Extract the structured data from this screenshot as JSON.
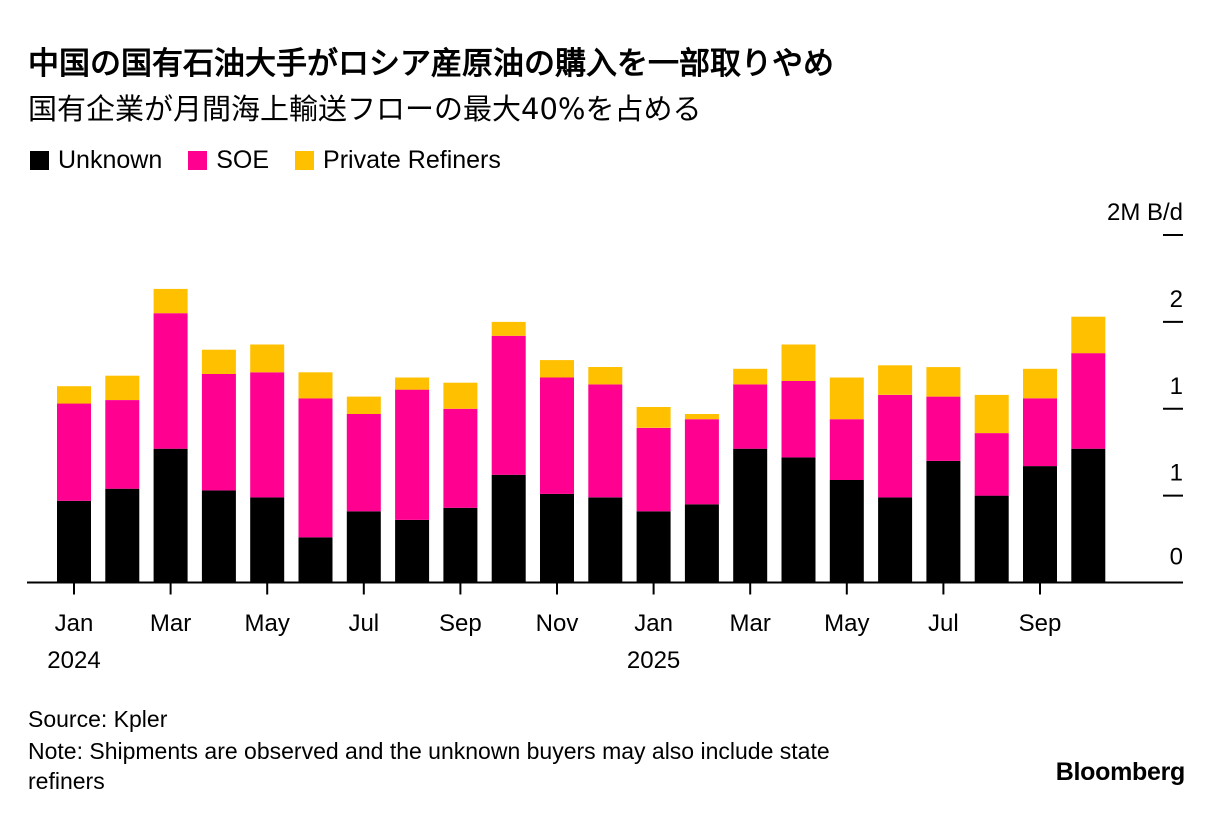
{
  "header": {
    "title": "中国の国有石油大手がロシア産原油の購入を一部取りやめ",
    "subtitle": "国有企業が月間海上輸送フローの最大40%を占める"
  },
  "legend": [
    {
      "label": "Unknown",
      "color": "#000000"
    },
    {
      "label": "SOE",
      "color": "#FF0090"
    },
    {
      "label": "Private Refiners",
      "color": "#FFC000"
    }
  ],
  "footer": {
    "source": "Source: Kpler",
    "note": "Note: Shipments are observed and the unknown buyers may also include state refiners",
    "brand": "Bloomberg"
  },
  "chart_data": {
    "type": "bar",
    "stacked": true,
    "title": "中国の国有石油大手がロシア産原油の購入を一部取りやめ",
    "subtitle": "国有企業が月間海上輸送フローの最大40%を占める",
    "xlabel": "",
    "ylabel": "M B/d",
    "ylim": [
      0,
      2
    ],
    "grid": false,
    "legend_position": "top-left",
    "y_axis_position": "right",
    "yticks": [
      {
        "value": 0,
        "label": "0"
      },
      {
        "value": 0.5,
        "label": "1"
      },
      {
        "value": 1.0,
        "label": "1"
      },
      {
        "value": 1.5,
        "label": "2"
      },
      {
        "value": 2.0,
        "label": "2M B/d"
      }
    ],
    "categories": [
      "2024-01",
      "2024-02",
      "2024-03",
      "2024-04",
      "2024-05",
      "2024-06",
      "2024-07",
      "2024-08",
      "2024-09",
      "2024-10",
      "2024-11",
      "2024-12",
      "2025-01",
      "2025-02",
      "2025-03",
      "2025-04",
      "2025-05",
      "2025-06",
      "2025-07",
      "2025-08",
      "2025-09",
      "2025-10"
    ],
    "xticks": [
      {
        "index": 0,
        "label": "Jan",
        "year": "2024"
      },
      {
        "index": 2,
        "label": "Mar"
      },
      {
        "index": 4,
        "label": "May"
      },
      {
        "index": 6,
        "label": "Jul"
      },
      {
        "index": 8,
        "label": "Sep"
      },
      {
        "index": 10,
        "label": "Nov"
      },
      {
        "index": 12,
        "label": "Jan",
        "year": "2025"
      },
      {
        "index": 14,
        "label": "Mar"
      },
      {
        "index": 16,
        "label": "May"
      },
      {
        "index": 18,
        "label": "Jul"
      },
      {
        "index": 20,
        "label": "Sep"
      }
    ],
    "series": [
      {
        "name": "Unknown",
        "color": "#000000",
        "values": [
          0.47,
          0.54,
          0.77,
          0.53,
          0.49,
          0.26,
          0.41,
          0.36,
          0.43,
          0.62,
          0.51,
          0.49,
          0.41,
          0.45,
          0.77,
          0.72,
          0.59,
          0.49,
          0.7,
          0.5,
          0.67,
          0.77
        ]
      },
      {
        "name": "SOE",
        "color": "#FF0090",
        "values": [
          0.56,
          0.51,
          0.78,
          0.67,
          0.72,
          0.8,
          0.56,
          0.75,
          0.57,
          0.8,
          0.67,
          0.65,
          0.48,
          0.49,
          0.37,
          0.44,
          0.35,
          0.59,
          0.37,
          0.36,
          0.39,
          0.55
        ]
      },
      {
        "name": "Private Refiners",
        "color": "#FFC000",
        "values": [
          0.1,
          0.14,
          0.14,
          0.14,
          0.16,
          0.15,
          0.1,
          0.07,
          0.15,
          0.08,
          0.1,
          0.1,
          0.12,
          0.03,
          0.09,
          0.21,
          0.24,
          0.17,
          0.17,
          0.22,
          0.17,
          0.21
        ]
      }
    ]
  }
}
